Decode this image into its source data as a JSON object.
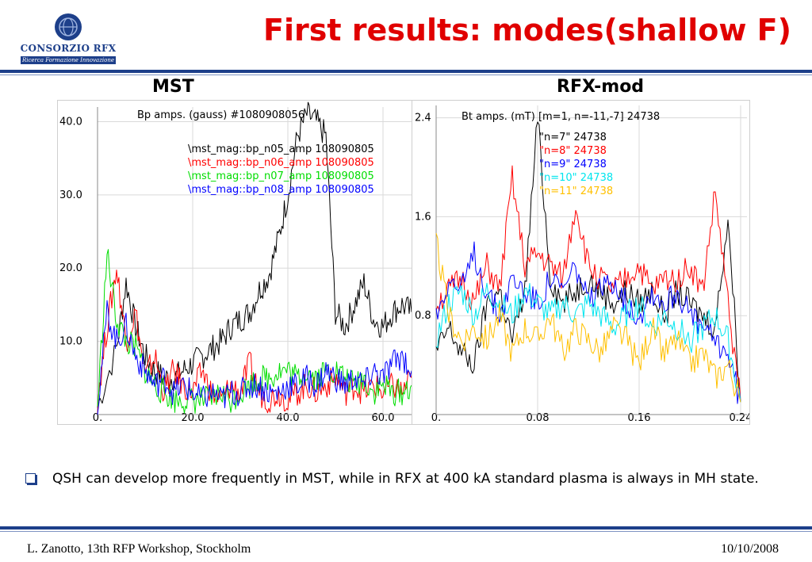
{
  "header": {
    "logo_text": "CONSORZIO RFX",
    "logo_subtext": "Ricerca Formazione Innovazione",
    "title": "First results: modes(shallow F)"
  },
  "panels": {
    "left_label": "MST",
    "right_label": "RFX-mod"
  },
  "chart_data": [
    {
      "type": "line",
      "title": "Bp amps. (gauss) #1080908056",
      "xlim": [
        0,
        66
      ],
      "ylim": [
        0,
        42
      ],
      "x_ticks": [
        "0.",
        "20.0",
        "40.0",
        "60.0"
      ],
      "y_ticks": [
        "10.0",
        "20.0",
        "30.0",
        "40.0"
      ],
      "series": [
        {
          "name": "\\mst_mag::bp_n05_amp",
          "shot": "108090805",
          "color": "#000000",
          "x": [
            0,
            4,
            6,
            8,
            10,
            12,
            14,
            16,
            18,
            20,
            22,
            24,
            26,
            28,
            30,
            32,
            34,
            36,
            38,
            40,
            42,
            44,
            46,
            48,
            50,
            52,
            54,
            56,
            58,
            60,
            62,
            64,
            66
          ],
          "y": [
            1,
            9,
            18,
            12,
            8,
            6,
            5,
            5,
            6,
            7,
            8,
            9,
            10,
            12,
            13,
            14,
            17,
            19,
            24,
            30,
            38,
            41,
            40,
            38,
            14,
            12,
            15,
            18,
            13,
            12,
            14,
            15,
            14
          ]
        },
        {
          "name": "\\mst_mag::bp_n06_amp",
          "shot": "108090805",
          "color": "#ff0000",
          "x": [
            0,
            2,
            4,
            6,
            8,
            10,
            12,
            14,
            16,
            18,
            20,
            22,
            24,
            26,
            28,
            30,
            32,
            34,
            36,
            38,
            40,
            42,
            44,
            46,
            48,
            50,
            52,
            54,
            56,
            58,
            60,
            62,
            64,
            66
          ],
          "y": [
            2,
            12,
            20,
            10,
            14,
            5,
            8,
            3,
            6,
            4,
            3,
            6,
            3,
            2,
            4,
            3,
            7,
            3,
            2,
            3,
            2,
            3,
            4,
            3,
            4,
            5,
            3,
            4,
            3,
            4,
            3,
            4,
            3,
            5
          ]
        },
        {
          "name": "\\mst_mag::bp_n07_amp",
          "shot": "108090805",
          "color": "#00dd00",
          "x": [
            0,
            2,
            4,
            6,
            8,
            10,
            12,
            14,
            16,
            18,
            20,
            22,
            24,
            26,
            28,
            30,
            32,
            34,
            36,
            38,
            40,
            42,
            44,
            46,
            48,
            50,
            52,
            54,
            56,
            58,
            60,
            62,
            64,
            66
          ],
          "y": [
            1,
            22,
            13,
            10,
            9,
            6,
            4,
            3,
            2,
            2,
            2,
            2,
            2,
            3,
            2,
            3,
            4,
            5,
            5,
            6,
            6,
            5,
            6,
            5,
            6,
            6,
            5,
            4,
            5,
            3,
            4,
            3,
            3,
            4
          ]
        },
        {
          "name": "\\mst_mag::bp_n08_amp",
          "shot": "108090805",
          "color": "#0000ff",
          "x": [
            0,
            2,
            4,
            6,
            8,
            10,
            12,
            14,
            16,
            18,
            20,
            22,
            24,
            26,
            28,
            30,
            32,
            34,
            36,
            38,
            40,
            42,
            44,
            46,
            48,
            50,
            52,
            54,
            56,
            58,
            60,
            62,
            64,
            66
          ],
          "y": [
            1,
            14,
            10,
            12,
            8,
            6,
            4,
            5,
            3,
            4,
            3,
            2,
            3,
            2,
            3,
            3,
            4,
            4,
            3,
            3,
            4,
            4,
            5,
            4,
            6,
            5,
            4,
            5,
            4,
            6,
            5,
            7,
            8,
            6
          ]
        }
      ]
    },
    {
      "type": "line",
      "title": "Bt amps. (mT) [m=1, n=-11,-7] 24738",
      "xlim": [
        0,
        0.245
      ],
      "ylim": [
        0,
        2.5
      ],
      "x_ticks": [
        "0.",
        "0.08",
        "0.16",
        "0.24"
      ],
      "y_ticks": [
        "0.8",
        "1.6",
        "2.4"
      ],
      "series": [
        {
          "name": "\"n=7\"",
          "shot": "24738",
          "color": "#000000",
          "x": [
            0,
            0.01,
            0.02,
            0.03,
            0.04,
            0.05,
            0.06,
            0.07,
            0.08,
            0.09,
            0.1,
            0.11,
            0.12,
            0.13,
            0.14,
            0.15,
            0.16,
            0.17,
            0.18,
            0.19,
            0.2,
            0.21,
            0.22,
            0.23,
            0.24
          ],
          "y": [
            0.5,
            0.7,
            0.5,
            0.4,
            0.9,
            1.0,
            0.6,
            1.0,
            2.4,
            1.1,
            0.9,
            1.0,
            1.1,
            1.0,
            0.9,
            1.0,
            0.9,
            1.0,
            0.8,
            1.0,
            0.9,
            0.8,
            0.7,
            1.6,
            0.1
          ]
        },
        {
          "name": "\"n=8\"",
          "shot": "24738",
          "color": "#ff0000",
          "x": [
            0,
            0.01,
            0.02,
            0.03,
            0.04,
            0.05,
            0.06,
            0.07,
            0.08,
            0.09,
            0.1,
            0.11,
            0.12,
            0.13,
            0.14,
            0.15,
            0.16,
            0.17,
            0.18,
            0.19,
            0.2,
            0.21,
            0.22,
            0.23,
            0.24
          ],
          "y": [
            0.9,
            1.0,
            1.1,
            0.9,
            1.2,
            1.0,
            1.9,
            1.2,
            1.3,
            1.2,
            1.1,
            1.7,
            1.2,
            1.1,
            1.0,
            1.1,
            1.2,
            1.0,
            1.1,
            1.1,
            1.2,
            1.0,
            1.8,
            0.9,
            0.1
          ]
        },
        {
          "name": "\"n=9\"",
          "shot": "24738",
          "color": "#0000ff",
          "x": [
            0,
            0.01,
            0.02,
            0.03,
            0.04,
            0.05,
            0.06,
            0.07,
            0.08,
            0.09,
            0.1,
            0.11,
            0.12,
            0.13,
            0.14,
            0.15,
            0.16,
            0.17,
            0.18,
            0.19,
            0.2,
            0.21,
            0.22,
            0.23,
            0.24
          ],
          "y": [
            0.8,
            1.1,
            1.0,
            1.3,
            1.0,
            0.8,
            1.1,
            1.0,
            0.9,
            1.1,
            1.0,
            1.2,
            0.9,
            1.0,
            1.1,
            0.9,
            0.8,
            1.0,
            0.9,
            1.0,
            0.8,
            0.7,
            0.6,
            0.5,
            0.1
          ]
        },
        {
          "name": "\"n=10\"",
          "shot": "24738",
          "color": "#00e5ee",
          "x": [
            0,
            0.01,
            0.02,
            0.03,
            0.04,
            0.05,
            0.06,
            0.07,
            0.08,
            0.09,
            0.1,
            0.11,
            0.12,
            0.13,
            0.14,
            0.15,
            0.16,
            0.17,
            0.18,
            0.19,
            0.2,
            0.21,
            0.22,
            0.23,
            0.24
          ],
          "y": [
            0.6,
            0.9,
            1.0,
            0.8,
            1.0,
            0.9,
            0.8,
            1.0,
            0.9,
            0.8,
            0.9,
            0.8,
            0.9,
            0.8,
            0.7,
            0.8,
            0.9,
            0.7,
            0.8,
            0.7,
            0.6,
            0.7,
            0.8,
            0.6,
            0.1
          ]
        },
        {
          "name": "\"n=11\"",
          "shot": "24738",
          "color": "#ffc000",
          "x": [
            0,
            0.01,
            0.02,
            0.03,
            0.04,
            0.05,
            0.06,
            0.07,
            0.08,
            0.09,
            0.1,
            0.11,
            0.12,
            0.13,
            0.14,
            0.15,
            0.16,
            0.17,
            0.18,
            0.19,
            0.2,
            0.21,
            0.22,
            0.23,
            0.24
          ],
          "y": [
            1.4,
            0.8,
            0.6,
            0.7,
            0.6,
            0.8,
            0.5,
            0.7,
            0.6,
            0.8,
            0.5,
            0.7,
            0.6,
            0.5,
            0.7,
            0.6,
            0.4,
            0.7,
            0.5,
            0.6,
            0.4,
            0.5,
            0.3,
            0.4,
            0.1
          ]
        }
      ]
    }
  ],
  "bullet": {
    "text": "QSH can develop more frequently in MST, while in RFX at 400 kA standard plasma is always in MH state."
  },
  "footer": {
    "left": "L. Zanotto, 13th RFP Workshop, Stockholm",
    "right": "10/10/2008"
  }
}
